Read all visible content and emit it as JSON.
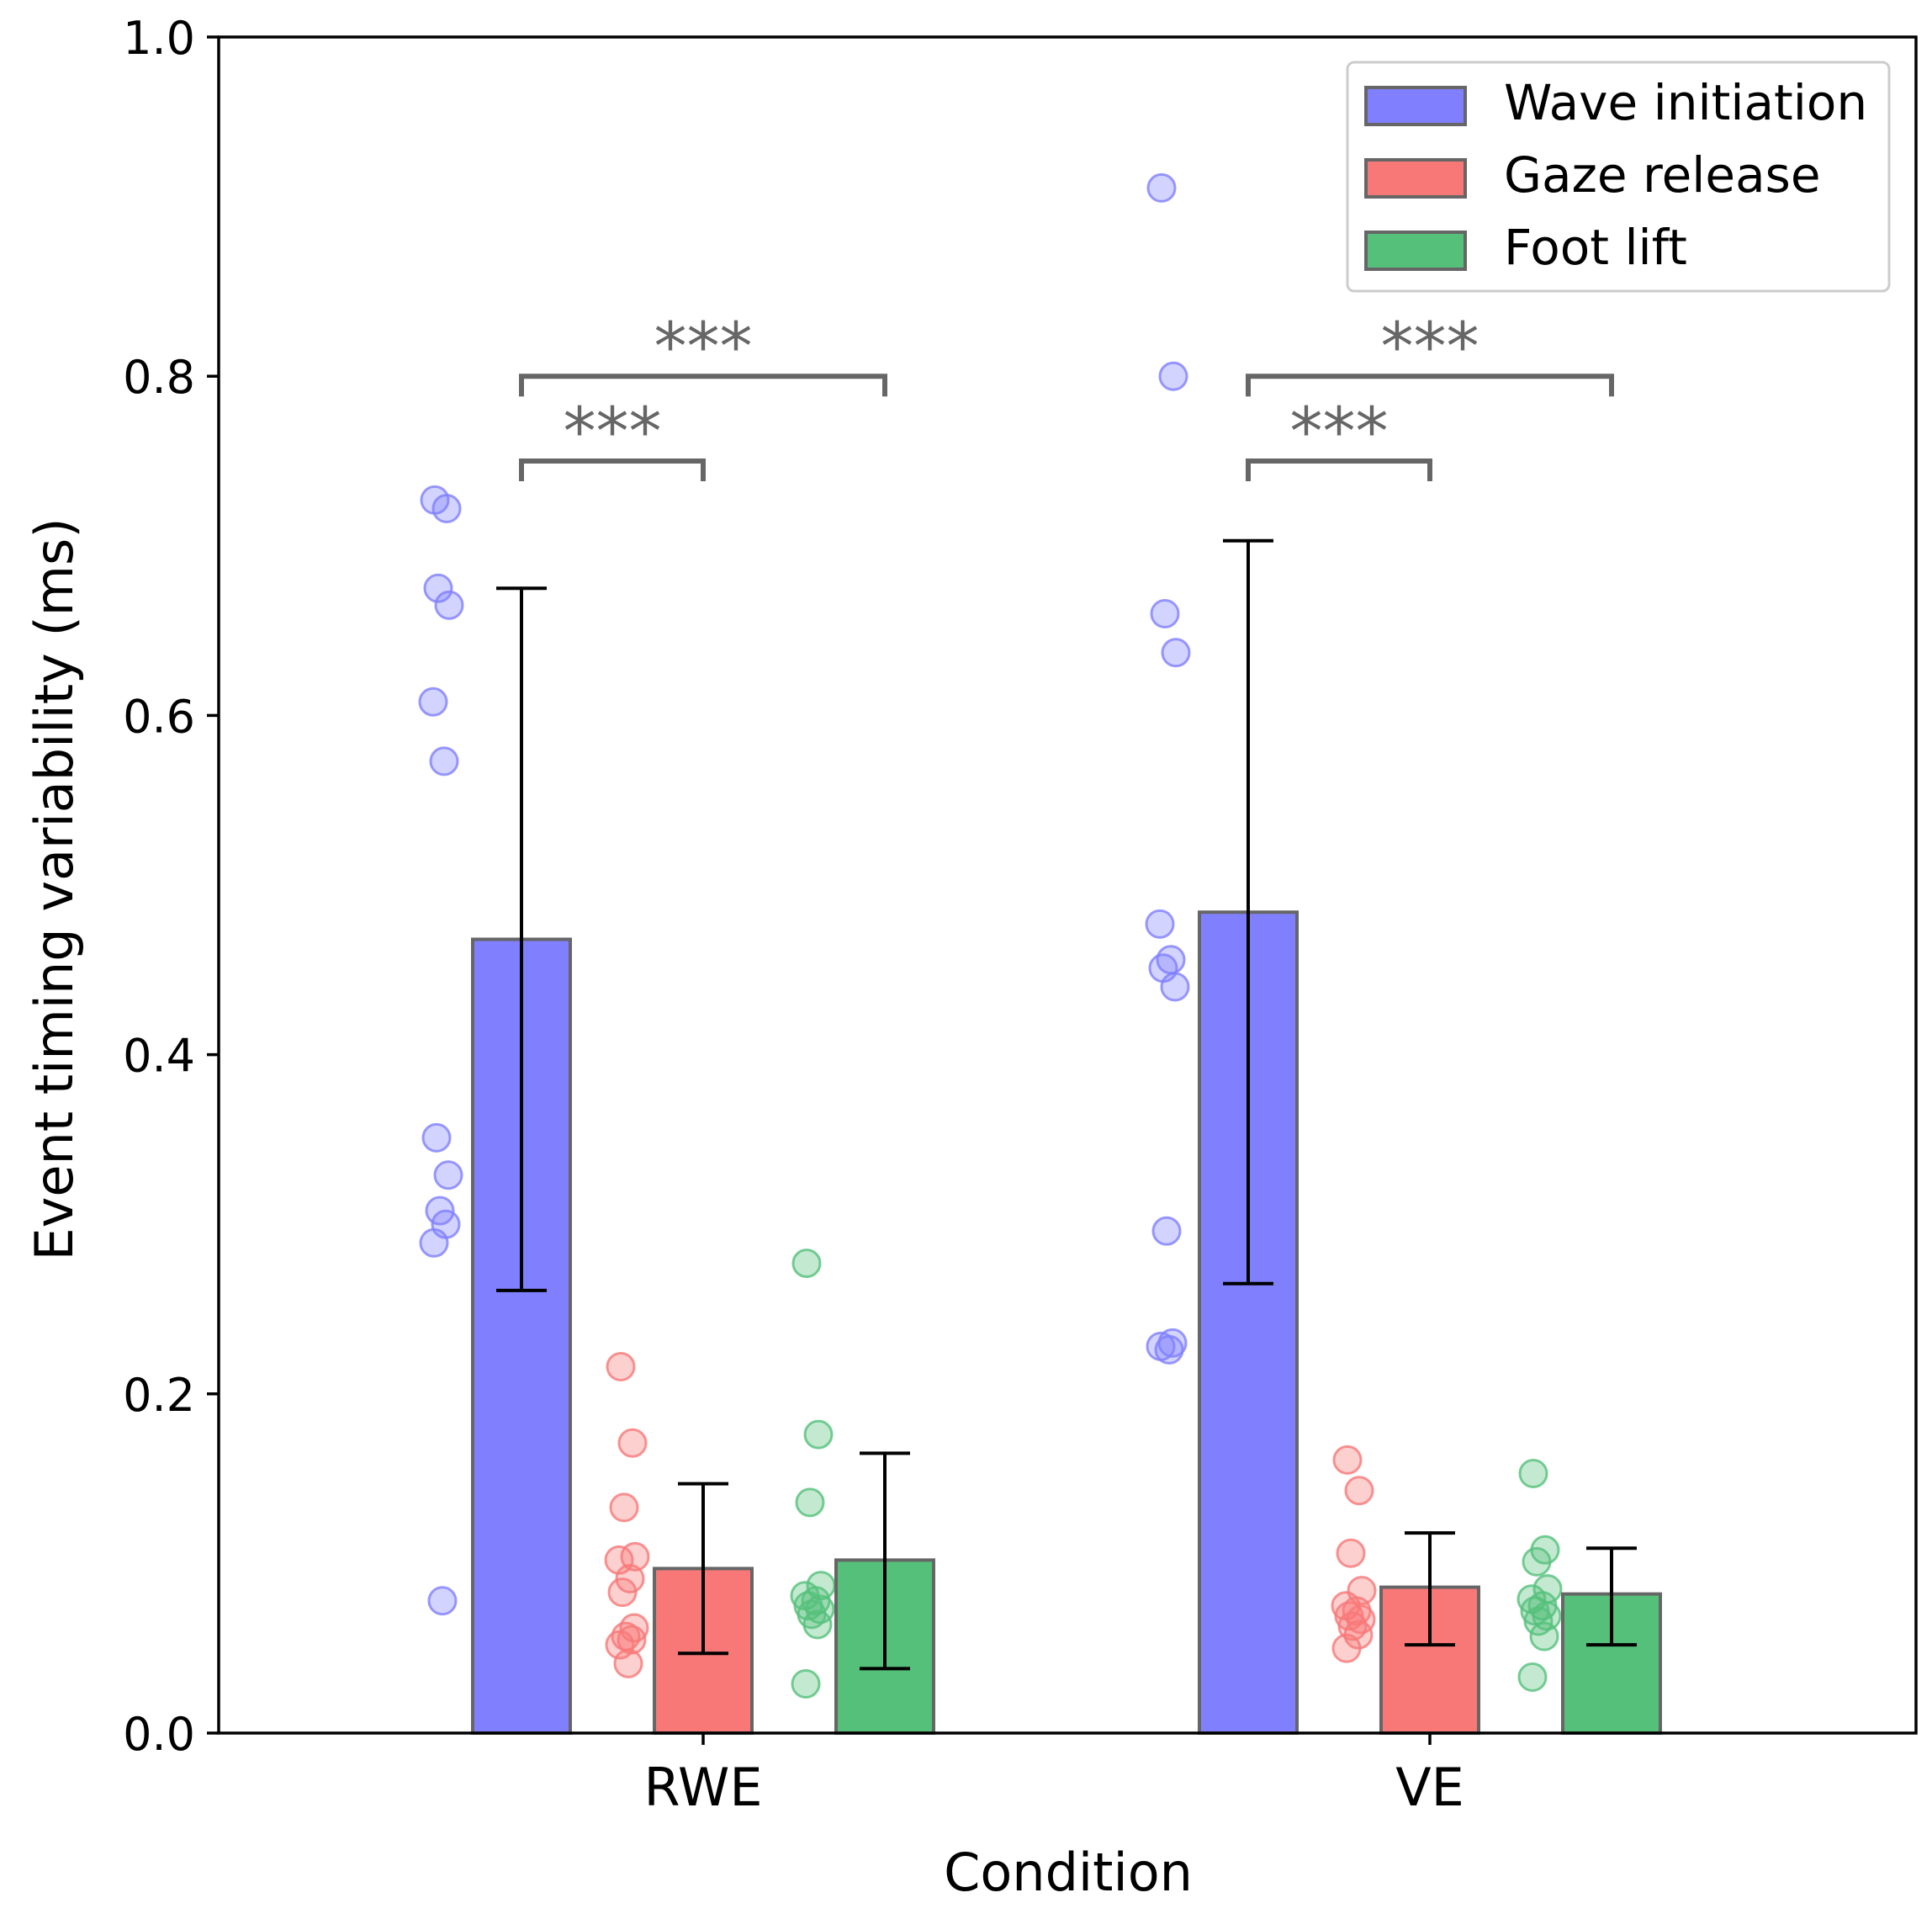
{
  "chart_data": {
    "type": "bar",
    "title": "",
    "xlabel": "Condition",
    "ylabel": "Event timing variability (ms)",
    "ylim": [
      0,
      1.0
    ],
    "yticks": [
      "0.0",
      "0.2",
      "0.4",
      "0.6",
      "0.8",
      "1.0"
    ],
    "grid": false,
    "legend_position": "top-right",
    "categories": [
      "RWE",
      "VE"
    ],
    "series": [
      {
        "name": "Wave initiation",
        "color": "#8080ff",
        "values": [
          0.468,
          0.484
        ],
        "error_low": [
          0.261,
          0.265
        ],
        "error_high": [
          0.675,
          0.703
        ],
        "points": [
          [
            0.727,
            0.722,
            0.675,
            0.665,
            0.608,
            0.573,
            0.351,
            0.329,
            0.308,
            0.3,
            0.289,
            0.078
          ],
          [
            0.911,
            0.8,
            0.66,
            0.637,
            0.477,
            0.456,
            0.451,
            0.44,
            0.296,
            0.23,
            0.228,
            0.226
          ]
        ]
      },
      {
        "name": "Gaze release",
        "color": "#f87878",
        "values": [
          0.097,
          0.086
        ],
        "error_low": [
          0.047,
          0.052
        ],
        "error_high": [
          0.147,
          0.118
        ],
        "points": [
          [
            0.216,
            0.171,
            0.133,
            0.104,
            0.102,
            0.091,
            0.083,
            0.062,
            0.057,
            0.055,
            0.052,
            0.041
          ],
          [
            0.161,
            0.143,
            0.106,
            0.084,
            0.075,
            0.072,
            0.069,
            0.067,
            0.063,
            0.058,
            0.05
          ]
        ]
      },
      {
        "name": "Foot lift",
        "color": "#55c07a",
        "values": [
          0.102,
          0.082
        ],
        "error_low": [
          0.038,
          0.052
        ],
        "error_high": [
          0.165,
          0.109
        ],
        "points": [
          [
            0.277,
            0.176,
            0.136,
            0.087,
            0.081,
            0.078,
            0.075,
            0.073,
            0.07,
            0.064,
            0.029
          ],
          [
            0.153,
            0.108,
            0.101,
            0.085,
            0.079,
            0.075,
            0.072,
            0.069,
            0.066,
            0.057,
            0.033
          ]
        ]
      }
    ],
    "annotations": [
      {
        "category": "RWE",
        "from_series": 0,
        "to_series": 1,
        "level": 0.75,
        "text": "***"
      },
      {
        "category": "RWE",
        "from_series": 0,
        "to_series": 2,
        "level": 0.8,
        "text": "***"
      },
      {
        "category": "VE",
        "from_series": 0,
        "to_series": 1,
        "level": 0.75,
        "text": "***"
      },
      {
        "category": "VE",
        "from_series": 0,
        "to_series": 2,
        "level": 0.8,
        "text": "***"
      }
    ]
  }
}
